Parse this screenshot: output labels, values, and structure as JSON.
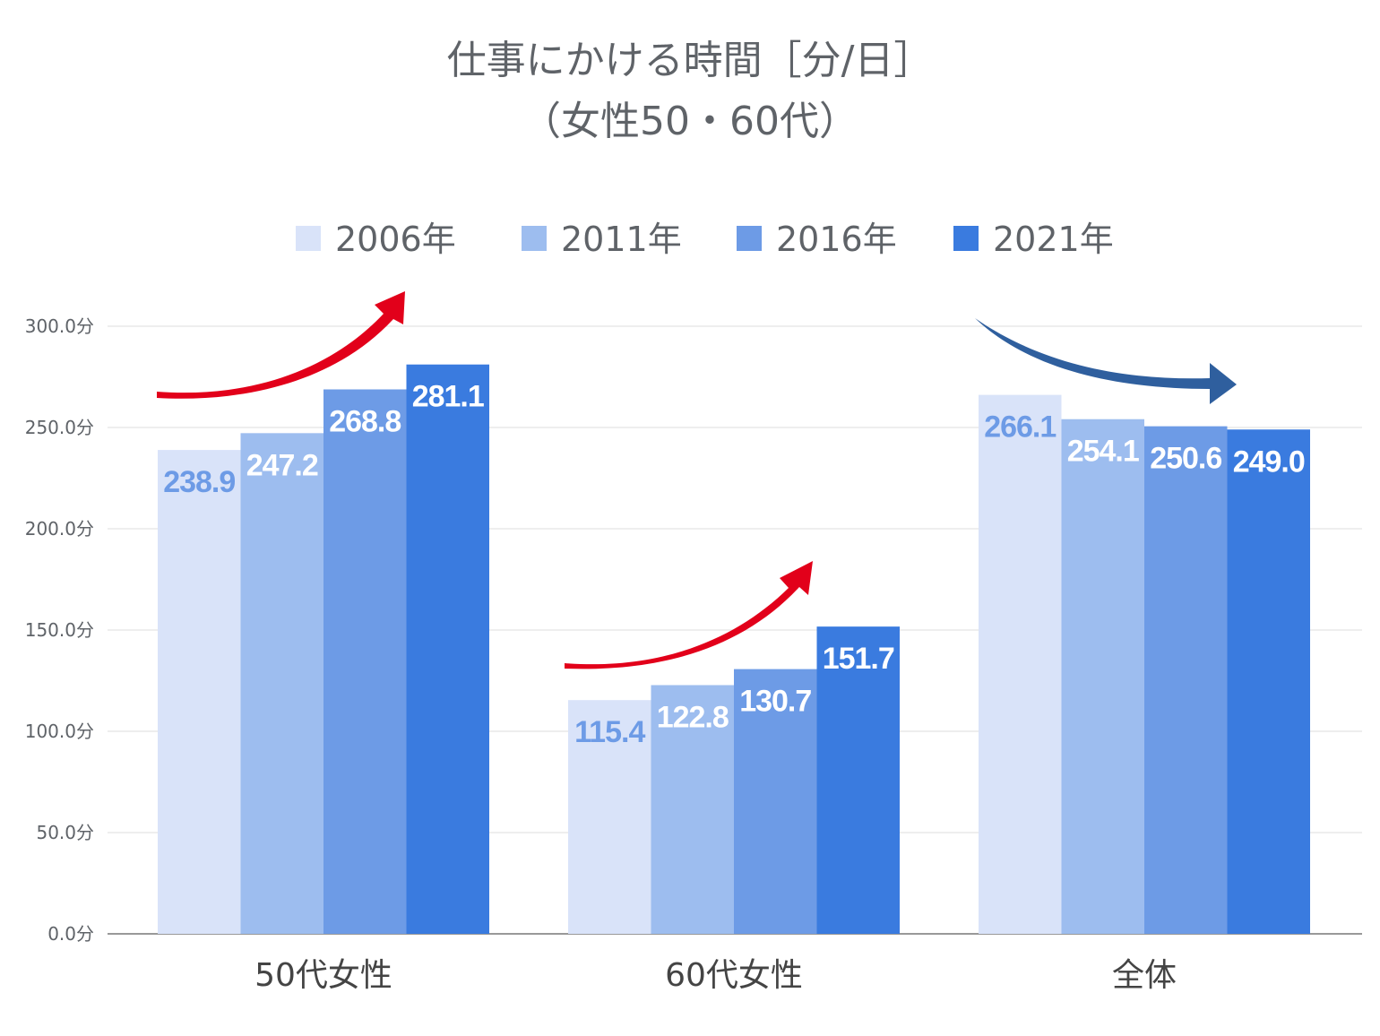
{
  "chart_data": {
    "type": "bar",
    "title_lines": [
      "仕事にかける時間［分/日］",
      "（女性50・60代）"
    ],
    "categories": [
      "50代女性",
      "60代女性",
      "全体"
    ],
    "series": [
      {
        "name": "2006年",
        "color": "#d9e3f9",
        "label_color": "#6d9be6",
        "values": [
          238.9,
          115.4,
          266.1
        ]
      },
      {
        "name": "2011年",
        "color": "#9dbdef",
        "label_color": "#ffffff",
        "values": [
          247.2,
          122.8,
          254.1
        ]
      },
      {
        "name": "2016年",
        "color": "#6d9be6",
        "label_color": "#ffffff",
        "values": [
          268.8,
          130.7,
          250.6
        ]
      },
      {
        "name": "2021年",
        "color": "#3a7bdf",
        "label_color": "#ffffff",
        "values": [
          281.1,
          151.7,
          249.0
        ]
      }
    ],
    "value_labels": [
      [
        "238.9",
        "115.4",
        "266.1"
      ],
      [
        "247.2",
        "122.8",
        "254.1"
      ],
      [
        "268.8",
        "130.7",
        "250.6"
      ],
      [
        "281.1",
        "151.7",
        "249.0"
      ]
    ],
    "y_ticks": [
      "0.0分",
      "50.0分",
      "100.0分",
      "150.0分",
      "200.0分",
      "250.0分",
      "300.0分"
    ],
    "ylim": [
      0,
      300
    ],
    "grid": true,
    "legend_position": "top",
    "annotations": [
      {
        "type": "arrow",
        "category": "50代女性",
        "direction": "up",
        "color": "#e2001a"
      },
      {
        "type": "arrow",
        "category": "60代女性",
        "direction": "up",
        "color": "#e2001a"
      },
      {
        "type": "arrow",
        "category": "全体",
        "direction": "down",
        "color": "#2f5f9e"
      }
    ]
  }
}
